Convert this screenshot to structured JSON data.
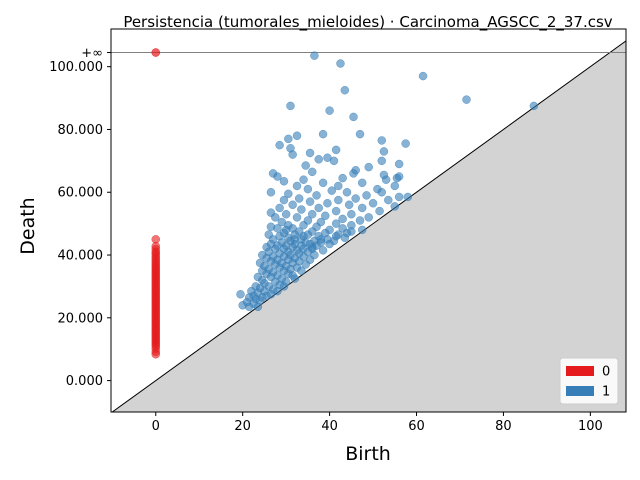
{
  "chart_data": {
    "type": "scatter",
    "title": "Persistencia (tumorales_mieloides) · Carcinoma_AGSCC_2_37.csv",
    "xlabel": "Birth",
    "ylabel": "Death",
    "xlim": [
      -10.3,
      108.2
    ],
    "ylim": [
      -10.0,
      112.0
    ],
    "x_ticks": [
      0,
      20,
      40,
      60,
      80,
      100
    ],
    "x_tick_labels": [
      "0",
      "20",
      "40",
      "60",
      "80",
      "100"
    ],
    "y_ticks": [
      0,
      20,
      40,
      60,
      80,
      100
    ],
    "y_tick_labels": [
      "0.000",
      "20.000",
      "40.000",
      "60.000",
      "80.000",
      "100.000"
    ],
    "infinity_label": "+∞",
    "infinity_value": 104.5,
    "grid": false,
    "legend_position": "lower-right",
    "colors": {
      "h0": "#e41a1c",
      "h1": "#377eb8",
      "diagonal_fill": "#d3d3d3",
      "inf_line": "#808080"
    },
    "series": [
      {
        "name": "0",
        "color": "#e41a1c",
        "infinite_points": [
          [
            0,
            104.5
          ]
        ],
        "points": [
          [
            0,
            45.0
          ],
          [
            0,
            42.8
          ],
          [
            0,
            41.9
          ],
          [
            0,
            41.0
          ],
          [
            0,
            40.4
          ],
          [
            0,
            39.6
          ],
          [
            0,
            38.9
          ],
          [
            0,
            38.2
          ],
          [
            0,
            37.5
          ],
          [
            0,
            36.9
          ],
          [
            0,
            36.2
          ],
          [
            0,
            35.6
          ],
          [
            0,
            35.0
          ],
          [
            0,
            34.4
          ],
          [
            0,
            33.8
          ],
          [
            0,
            33.2
          ],
          [
            0,
            32.6
          ],
          [
            0,
            32.0
          ],
          [
            0,
            31.4
          ],
          [
            0,
            30.8
          ],
          [
            0,
            30.2
          ],
          [
            0,
            29.6
          ],
          [
            0,
            29.0
          ],
          [
            0,
            28.4
          ],
          [
            0,
            27.8
          ],
          [
            0,
            27.2
          ],
          [
            0,
            26.6
          ],
          [
            0,
            26.0
          ],
          [
            0,
            25.4
          ],
          [
            0,
            24.8
          ],
          [
            0,
            24.2
          ],
          [
            0,
            23.6
          ],
          [
            0,
            23.0
          ],
          [
            0,
            22.4
          ],
          [
            0,
            21.8
          ],
          [
            0,
            21.2
          ],
          [
            0,
            20.6
          ],
          [
            0,
            20.0
          ],
          [
            0,
            19.4
          ],
          [
            0,
            18.8
          ],
          [
            0,
            18.2
          ],
          [
            0,
            17.6
          ],
          [
            0,
            17.0
          ],
          [
            0,
            16.4
          ],
          [
            0,
            15.8
          ],
          [
            0,
            15.2
          ],
          [
            0,
            14.6
          ],
          [
            0,
            14.0
          ],
          [
            0,
            13.4
          ],
          [
            0,
            12.8
          ],
          [
            0,
            12.2
          ],
          [
            0,
            11.6
          ],
          [
            0,
            11.0
          ],
          [
            0,
            10.2
          ],
          [
            0,
            9.2
          ],
          [
            0,
            8.4
          ]
        ]
      },
      {
        "name": "1",
        "color": "#377eb8",
        "points": [
          [
            36.5,
            103.5
          ],
          [
            42.5,
            101.0
          ],
          [
            61.5,
            97.0
          ],
          [
            43.5,
            92.5
          ],
          [
            71.5,
            89.5
          ],
          [
            87.0,
            87.5
          ],
          [
            31.0,
            87.5
          ],
          [
            40.0,
            86.0
          ],
          [
            45.5,
            84.0
          ],
          [
            38.5,
            78.5
          ],
          [
            47.0,
            78.5
          ],
          [
            32.5,
            78.0
          ],
          [
            30.5,
            77.0
          ],
          [
            52.0,
            76.5
          ],
          [
            28.5,
            75.0
          ],
          [
            57.5,
            75.5
          ],
          [
            31.0,
            74.0
          ],
          [
            41.5,
            73.5
          ],
          [
            52.5,
            73.0
          ],
          [
            35.5,
            72.5
          ],
          [
            31.5,
            72.0
          ],
          [
            39.5,
            71.0
          ],
          [
            37.5,
            70.5
          ],
          [
            41.0,
            70.0
          ],
          [
            52.0,
            70.0
          ],
          [
            56.0,
            69.0
          ],
          [
            34.5,
            68.5
          ],
          [
            49.0,
            68.0
          ],
          [
            46.0,
            67.0
          ],
          [
            36.0,
            66.5
          ],
          [
            27.0,
            66.0
          ],
          [
            45.5,
            66.0
          ],
          [
            52.5,
            65.5
          ],
          [
            56.0,
            65.0
          ],
          [
            28.0,
            65.0
          ],
          [
            43.0,
            64.5
          ],
          [
            55.5,
            64.5
          ],
          [
            29.5,
            63.5
          ],
          [
            34.0,
            64.0
          ],
          [
            53.0,
            64.0
          ],
          [
            38.5,
            63.0
          ],
          [
            47.5,
            63.0
          ],
          [
            32.5,
            62.0
          ],
          [
            42.0,
            62.0
          ],
          [
            55.0,
            62.0
          ],
          [
            35.0,
            61.0
          ],
          [
            51.0,
            61.0
          ],
          [
            40.5,
            60.5
          ],
          [
            44.0,
            60.0
          ],
          [
            52.0,
            60.0
          ],
          [
            26.5,
            60.0
          ],
          [
            30.5,
            59.5
          ],
          [
            37.0,
            59.0
          ],
          [
            48.5,
            59.0
          ],
          [
            56.0,
            58.5
          ],
          [
            58.0,
            58.5
          ],
          [
            33.0,
            58.0
          ],
          [
            46.0,
            58.0
          ],
          [
            29.5,
            57.5
          ],
          [
            42.0,
            57.5
          ],
          [
            53.5,
            57.5
          ],
          [
            35.5,
            57.0
          ],
          [
            39.5,
            56.5
          ],
          [
            50.0,
            56.5
          ],
          [
            31.5,
            56.0
          ],
          [
            44.5,
            56.0
          ],
          [
            55.0,
            55.5
          ],
          [
            28.5,
            55.0
          ],
          [
            37.5,
            55.0
          ],
          [
            47.5,
            55.0
          ],
          [
            33.5,
            54.5
          ],
          [
            41.5,
            54.0
          ],
          [
            51.5,
            54.0
          ],
          [
            26.5,
            53.5
          ],
          [
            30.0,
            53.0
          ],
          [
            36.0,
            53.0
          ],
          [
            45.0,
            53.0
          ],
          [
            39.0,
            52.5
          ],
          [
            49.0,
            52.0
          ],
          [
            27.5,
            52.0
          ],
          [
            32.5,
            52.0
          ],
          [
            43.0,
            51.5
          ],
          [
            35.0,
            51.0
          ],
          [
            47.0,
            51.0
          ],
          [
            29.0,
            50.5
          ],
          [
            38.0,
            50.5
          ],
          [
            41.5,
            50.0
          ],
          [
            30.5,
            49.5
          ],
          [
            34.0,
            49.5
          ],
          [
            45.0,
            49.5
          ],
          [
            26.5,
            49.0
          ],
          [
            37.0,
            49.0
          ],
          [
            43.0,
            48.5
          ],
          [
            28.0,
            48.5
          ],
          [
            31.5,
            48.5
          ],
          [
            40.0,
            48.0
          ],
          [
            47.5,
            48.0
          ],
          [
            33.0,
            47.5
          ],
          [
            36.0,
            47.5
          ],
          [
            29.5,
            47.0
          ],
          [
            39.0,
            47.0
          ],
          [
            44.0,
            47.0
          ],
          [
            26.0,
            46.5
          ],
          [
            32.0,
            46.5
          ],
          [
            35.0,
            46.5
          ],
          [
            41.5,
            46.0
          ],
          [
            28.5,
            46.0
          ],
          [
            37.5,
            46.0
          ],
          [
            30.5,
            45.5
          ],
          [
            43.5,
            45.5
          ],
          [
            33.5,
            45.0
          ],
          [
            39.5,
            45.0
          ],
          [
            27.0,
            45.0
          ],
          [
            31.0,
            44.5
          ],
          [
            36.5,
            44.5
          ],
          [
            41.0,
            44.5
          ],
          [
            29.0,
            44.0
          ],
          [
            34.5,
            44.0
          ],
          [
            38.0,
            44.0
          ],
          [
            26.5,
            43.5
          ],
          [
            32.0,
            43.5
          ],
          [
            35.5,
            43.5
          ],
          [
            40.0,
            43.5
          ],
          [
            28.0,
            43.0
          ],
          [
            30.0,
            43.0
          ],
          [
            33.5,
            43.0
          ],
          [
            37.0,
            43.0
          ],
          [
            25.5,
            42.5
          ],
          [
            31.5,
            42.5
          ],
          [
            36.0,
            42.5
          ],
          [
            29.5,
            42.0
          ],
          [
            34.0,
            42.0
          ],
          [
            27.5,
            42.0
          ],
          [
            32.5,
            41.5
          ],
          [
            38.5,
            41.5
          ],
          [
            26.0,
            41.0
          ],
          [
            30.5,
            41.0
          ],
          [
            35.0,
            41.0
          ],
          [
            28.5,
            40.5
          ],
          [
            33.0,
            40.5
          ],
          [
            24.5,
            40.0
          ],
          [
            31.0,
            40.0
          ],
          [
            36.5,
            40.0
          ],
          [
            27.0,
            39.5
          ],
          [
            29.5,
            39.5
          ],
          [
            34.0,
            39.5
          ],
          [
            25.5,
            39.0
          ],
          [
            32.0,
            39.0
          ],
          [
            28.0,
            38.5
          ],
          [
            30.5,
            38.5
          ],
          [
            35.5,
            38.5
          ],
          [
            26.5,
            38.0
          ],
          [
            33.0,
            38.0
          ],
          [
            24.0,
            37.5
          ],
          [
            29.0,
            37.5
          ],
          [
            31.5,
            37.5
          ],
          [
            27.5,
            37.0
          ],
          [
            34.5,
            37.0
          ],
          [
            25.0,
            36.5
          ],
          [
            30.0,
            36.5
          ],
          [
            32.5,
            36.0
          ],
          [
            28.5,
            36.0
          ],
          [
            26.0,
            35.5
          ],
          [
            31.0,
            35.5
          ],
          [
            24.5,
            35.0
          ],
          [
            29.5,
            35.0
          ],
          [
            33.5,
            35.0
          ],
          [
            27.0,
            34.5
          ],
          [
            30.5,
            34.0
          ],
          [
            25.5,
            34.0
          ],
          [
            28.0,
            33.5
          ],
          [
            31.5,
            33.5
          ],
          [
            23.5,
            33.0
          ],
          [
            26.5,
            33.0
          ],
          [
            29.0,
            32.5
          ],
          [
            32.0,
            32.5
          ],
          [
            24.5,
            32.0
          ],
          [
            27.5,
            31.5
          ],
          [
            30.0,
            31.5
          ],
          [
            25.0,
            31.0
          ],
          [
            28.5,
            30.5
          ],
          [
            23.0,
            30.0
          ],
          [
            26.0,
            30.0
          ],
          [
            29.5,
            30.0
          ],
          [
            24.0,
            29.5
          ],
          [
            27.0,
            29.0
          ],
          [
            22.0,
            28.5
          ],
          [
            25.0,
            28.5
          ],
          [
            28.0,
            28.5
          ],
          [
            23.5,
            28.0
          ],
          [
            26.5,
            27.5
          ],
          [
            19.5,
            27.5
          ],
          [
            22.5,
            27.0
          ],
          [
            25.5,
            27.0
          ],
          [
            21.5,
            26.5
          ],
          [
            24.5,
            26.5
          ],
          [
            23.0,
            26.0
          ],
          [
            21.0,
            25.0
          ],
          [
            22.5,
            24.5
          ],
          [
            20.0,
            24.0
          ],
          [
            23.5,
            23.5
          ],
          [
            21.5,
            23.5
          ],
          [
            24.0,
            25.5
          ],
          [
            30.0,
            48.0
          ],
          [
            34.0,
            46.0
          ],
          [
            38.0,
            45.0
          ],
          [
            42.0,
            46.5
          ],
          [
            45.0,
            47.5
          ],
          [
            32.0,
            45.0
          ],
          [
            36.0,
            42.0
          ]
        ]
      }
    ]
  }
}
